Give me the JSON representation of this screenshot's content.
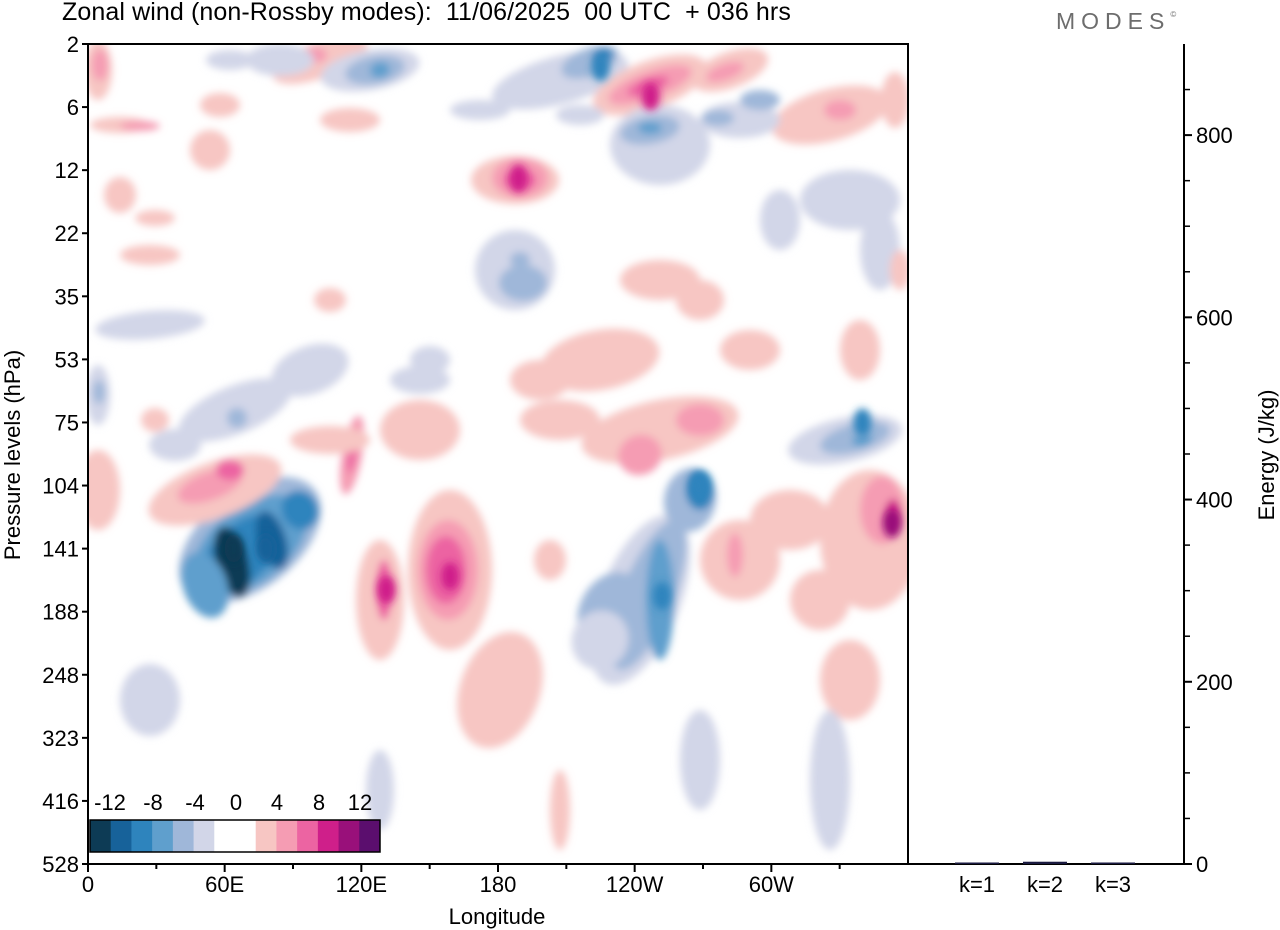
{
  "header": {
    "title": "Zonal wind (non-Rossby modes):  11/06/2025  00 UTC  + 036 hrs",
    "logo": "MODES",
    "logo_mark": "©"
  },
  "colors": {
    "neg": [
      "#0d3b55",
      "#17629a",
      "#2e84bd",
      "#5f9fcd",
      "#9fb7d9",
      "#d2d6e8"
    ],
    "zero": "#ffffff",
    "pos": [
      "#f7c6c3",
      "#f59cb3",
      "#ec64a2",
      "#cf1f8a",
      "#99107a",
      "#5b0e6e"
    ],
    "frame": "#000000"
  },
  "chart_data": [
    {
      "type": "heatmap",
      "title": "Zonal wind (non-Rossby modes):  11/06/2025  00 UTC  + 036 hrs",
      "xlabel": "Longitude",
      "ylabel": "Pressure levels (hPa)",
      "x_ticks": [
        "0",
        "60E",
        "120E",
        "180",
        "120W",
        "60W"
      ],
      "x_range": [
        0,
        360
      ],
      "y_ticks": [
        "2",
        "6",
        "12",
        "22",
        "35",
        "53",
        "75",
        "104",
        "141",
        "188",
        "248",
        "323",
        "416",
        "528"
      ],
      "y_scale": "pressure levels, top-down",
      "colorbar": {
        "labels": [
          "-12",
          "-8",
          "-4",
          "0",
          "4",
          "8",
          "12"
        ],
        "levels": [
          -14,
          -12,
          -10,
          -8,
          -6,
          -4,
          -2,
          2,
          4,
          6,
          8,
          10,
          12,
          14
        ]
      },
      "features": [
        {
          "name": "negative jet core",
          "lon": 64,
          "p": 141,
          "value": -13
        },
        {
          "name": "negative jet core",
          "lon": 78,
          "p": 141,
          "value": -11
        },
        {
          "name": "positive core",
          "lon": 159,
          "p": 160,
          "value": 8
        },
        {
          "name": "positive core",
          "lon": 131,
          "p": 170,
          "value": 8
        },
        {
          "name": "positive core",
          "lon": 189,
          "p": 13,
          "value": 8
        },
        {
          "name": "negative core",
          "lon": 252,
          "p": 175,
          "value": -9
        },
        {
          "name": "negative core",
          "lon": 268,
          "p": 104,
          "value": -9
        },
        {
          "name": "positive core",
          "lon": 353,
          "p": 125,
          "value": 10
        },
        {
          "name": "negative core",
          "lon": 340,
          "p": 75,
          "value": -8
        },
        {
          "name": "negative core",
          "lon": 225,
          "p": 3,
          "value": -8
        },
        {
          "name": "positive core",
          "lon": 247,
          "p": 5,
          "value": 9
        }
      ]
    },
    {
      "type": "bar",
      "categories": [
        "k=1",
        "k=2",
        "k=3"
      ],
      "values": [
        1.5,
        2.5,
        1.0
      ],
      "ylabel": "Energy (J/kg)",
      "ylim": [
        0,
        900
      ],
      "y_ticks": [
        0,
        200,
        400,
        600,
        800
      ]
    }
  ]
}
